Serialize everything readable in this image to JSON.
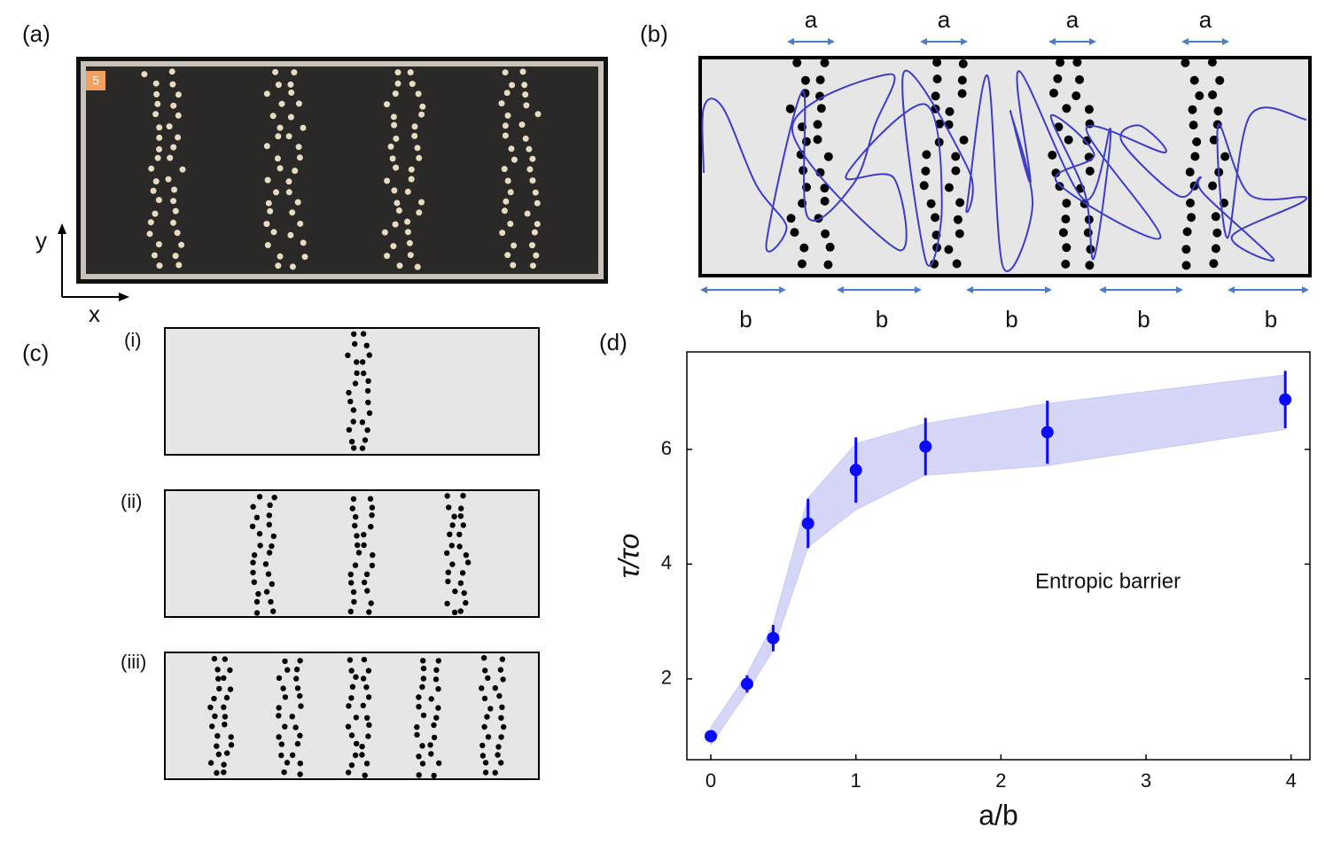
{
  "panels": {
    "a": {
      "label": "(a)",
      "badge": "5",
      "x_axis": "x",
      "y_axis": "y"
    },
    "b": {
      "label": "(b)",
      "gap_labels": [
        "a",
        "a",
        "a",
        "a"
      ],
      "spacing_labels": [
        "b",
        "b",
        "b",
        "b",
        "b"
      ]
    },
    "c": {
      "label": "(c)",
      "sublabels": [
        "(i)",
        "(ii)",
        "(iii)"
      ]
    },
    "d": {
      "label": "(d)"
    }
  },
  "chart_data": {
    "type": "scatter",
    "x": [
      0,
      0.25,
      0.43,
      0.67,
      1.0,
      1.48,
      2.32,
      3.96
    ],
    "values": [
      1.0,
      1.91,
      2.71,
      4.71,
      5.64,
      6.05,
      6.3,
      6.87
    ],
    "errors": [
      0,
      0.15,
      0.23,
      0.43,
      0.57,
      0.5,
      0.55,
      0.5
    ],
    "band_lower": [
      0.85,
      1.77,
      2.5,
      4.3,
      4.95,
      5.55,
      5.72,
      6.35
    ],
    "band_upper": [
      1.15,
      2.08,
      2.95,
      5.15,
      6.1,
      6.45,
      6.8,
      7.3
    ],
    "color": "#0a0aff",
    "band_color": "#c8c8f5",
    "xlabel": "a/b",
    "ylabel": "τ/τo",
    "annotation": "Entropic barrier",
    "xlim": [
      -0.165,
      4.13
    ],
    "ylim": [
      0.59,
      7.7
    ],
    "xticks": [
      0,
      1,
      2,
      3,
      4
    ],
    "yticks": [
      2,
      4,
      6
    ]
  }
}
